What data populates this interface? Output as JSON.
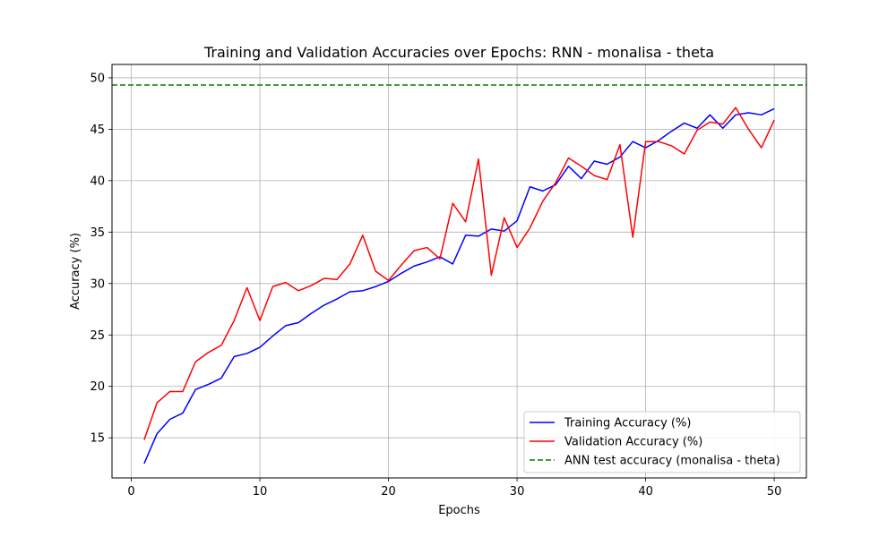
{
  "chart_data": {
    "type": "line",
    "title": "Training and Validation Accuracies over Epochs: RNN - monalisa - theta",
    "xlabel": "Epochs",
    "ylabel": "Accuracy (%)",
    "xlim": [
      -1.5,
      52.5
    ],
    "ylim": [
      11.1,
      51.3
    ],
    "xticks": [
      0,
      10,
      20,
      30,
      40,
      50
    ],
    "yticks": [
      15,
      20,
      25,
      30,
      35,
      40,
      45,
      50
    ],
    "grid": true,
    "legend_position": "lower-right",
    "x": [
      1,
      2,
      3,
      4,
      5,
      6,
      7,
      8,
      9,
      10,
      11,
      12,
      13,
      14,
      15,
      16,
      17,
      18,
      19,
      20,
      21,
      22,
      23,
      24,
      25,
      26,
      27,
      28,
      29,
      30,
      31,
      32,
      33,
      34,
      35,
      36,
      37,
      38,
      39,
      40,
      41,
      42,
      43,
      44,
      45,
      46,
      47,
      48,
      49,
      50
    ],
    "series": [
      {
        "name": "Training Accuracy (%)",
        "color": "#0000ff",
        "style": "solid",
        "values": [
          12.5,
          15.4,
          16.8,
          17.4,
          19.7,
          20.2,
          20.8,
          22.9,
          23.2,
          23.8,
          24.9,
          25.9,
          26.2,
          27.1,
          27.9,
          28.5,
          29.2,
          29.3,
          29.7,
          30.2,
          31.0,
          31.7,
          32.1,
          32.6,
          31.9,
          34.7,
          34.6,
          35.3,
          35.1,
          36.1,
          39.4,
          39.0,
          39.6,
          41.4,
          40.2,
          41.9,
          41.6,
          42.3,
          43.8,
          43.2,
          43.9,
          44.8,
          45.6,
          45.1,
          46.4,
          45.1,
          46.4,
          46.6,
          46.4,
          47.0
        ]
      },
      {
        "name": "Validation Accuracy (%)",
        "color": "#ff0000",
        "style": "solid",
        "values": [
          14.8,
          18.4,
          19.5,
          19.5,
          22.4,
          23.3,
          24.0,
          26.4,
          29.6,
          26.4,
          29.7,
          30.1,
          29.3,
          29.8,
          30.5,
          30.4,
          31.9,
          34.7,
          31.2,
          30.3,
          31.8,
          33.2,
          33.5,
          32.4,
          37.8,
          36.0,
          42.1,
          30.8,
          36.4,
          33.5,
          35.4,
          38.0,
          39.8,
          42.2,
          41.4,
          40.5,
          40.1,
          43.5,
          34.5,
          43.8,
          43.8,
          43.4,
          42.6,
          44.9,
          45.7,
          45.5,
          47.1,
          45.0,
          43.2,
          45.9
        ]
      },
      {
        "name": "ANN test accuracy (monalisa - theta)",
        "color": "#008000",
        "style": "dashed",
        "constant": 49.3
      }
    ]
  }
}
